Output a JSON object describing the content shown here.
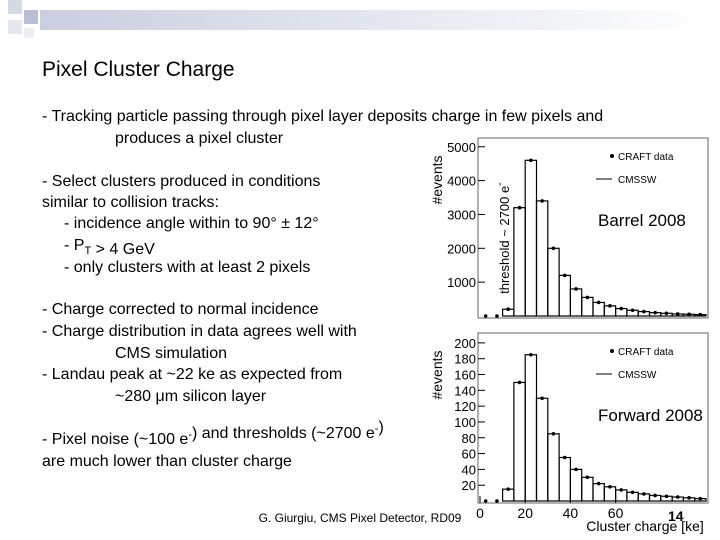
{
  "title": "Pixel Cluster Charge",
  "lines": [
    "- Tracking particle passing through pixel layer deposits charge in few pixels and",
    "produces a pixel cluster",
    "- Select clusters produced in conditions",
    "similar to collision tracks:",
    "- incidence angle within to 90° ± 12°",
    [
      "- P",
      {
        "text": "T",
        "shift": "sub"
      },
      " > 4 GeV"
    ],
    "- only clusters with at least 2 pixels",
    "- Charge corrected to normal incidence",
    "- Charge distribution in data agrees well with",
    "CMS simulation",
    "- Landau peak at ~22 ke as expected from",
    "~280 μm silicon layer",
    [
      "- Pixel noise (~100 e",
      {
        "text": "-",
        "shift": "super"
      },
      ") and thresholds (~2700 e",
      {
        "text": "-",
        "shift": "super"
      },
      ")"
    ],
    "are much lower than cluster charge"
  ],
  "footer": "G. Giurgiu, CMS Pixel Detector, RD09",
  "page_number": "14",
  "chart_data": [
    {
      "type": "histogram",
      "ylabel": "#events",
      "annotation": "Barrel 2008",
      "side_note": [
        "threshold ~ 2700 e",
        {
          "text": "-",
          "shift": "super"
        }
      ],
      "legend": [
        "CRAFT data",
        "CMSSW"
      ],
      "bins": [
        0,
        5,
        10,
        15,
        20,
        25,
        30,
        35,
        40,
        45,
        50,
        55,
        60,
        65,
        70,
        75,
        80,
        85,
        90,
        95,
        100
      ],
      "values": [
        0,
        0,
        200,
        3200,
        4600,
        3400,
        2000,
        1200,
        800,
        550,
        400,
        300,
        220,
        170,
        130,
        100,
        80,
        60,
        50,
        40
      ],
      "xlim": [
        0,
        100
      ],
      "ylim": [
        0,
        5200
      ],
      "yticks": [
        1000,
        2000,
        3000,
        4000,
        5000
      ]
    },
    {
      "type": "histogram",
      "ylabel": "#events",
      "xlabel": "Cluster charge [ke]",
      "annotation": "Forward 2008",
      "legend": [
        "CRAFT data",
        "CMSSW"
      ],
      "bins": [
        0,
        5,
        10,
        15,
        20,
        25,
        30,
        35,
        40,
        45,
        50,
        55,
        60,
        65,
        70,
        75,
        80,
        85,
        90,
        95,
        100
      ],
      "values": [
        0,
        0,
        15,
        150,
        185,
        130,
        85,
        55,
        40,
        30,
        22,
        18,
        14,
        11,
        9,
        7,
        6,
        5,
        4,
        3
      ],
      "xlim": [
        0,
        100
      ],
      "ylim": [
        0,
        210
      ],
      "yticks": [
        20,
        40,
        60,
        80,
        100,
        120,
        140,
        160,
        180,
        200
      ],
      "xticks": [
        0,
        20,
        40,
        60
      ]
    }
  ]
}
